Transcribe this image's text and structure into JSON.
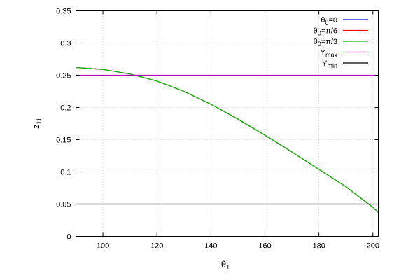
{
  "chart_data": {
    "type": "line",
    "xlabel": {
      "base": "θ",
      "sub": "1"
    },
    "ylabel": {
      "base": "z",
      "sub": "11"
    },
    "xlim": [
      90,
      202
    ],
    "ylim": [
      0,
      0.35
    ],
    "x_ticks": [
      100,
      120,
      140,
      160,
      180,
      200
    ],
    "x_tick_labels": [
      "100",
      "120",
      "140",
      "160",
      "180",
      "200"
    ],
    "y_ticks": [
      0,
      0.05,
      0.1,
      0.15,
      0.2,
      0.25,
      0.3,
      0.35
    ],
    "y_tick_labels": [
      "0",
      "0.05",
      "0.1",
      "0.15",
      "0.2",
      "0.25",
      "0.3",
      "0.35"
    ],
    "grid": true,
    "legend_position": "top-right",
    "series": [
      {
        "label": {
          "base": "θ",
          "sub": "0",
          "rest": "=0"
        },
        "color": "#0000ff",
        "x": [
          90,
          100,
          110,
          120,
          130,
          140,
          150,
          160,
          170,
          180,
          190,
          200,
          202
        ],
        "y": [
          0.262,
          0.259,
          0.252,
          0.241,
          0.225,
          0.205,
          0.182,
          0.157,
          0.131,
          0.104,
          0.077,
          0.045,
          0.037
        ]
      },
      {
        "label": {
          "base": "θ",
          "sub": "0",
          "rest": "=π/6"
        },
        "color": "#ff0000",
        "x": [
          90,
          100,
          110,
          120,
          130,
          140,
          150,
          160,
          170,
          180,
          190,
          200,
          202
        ],
        "y": [
          0.262,
          0.259,
          0.252,
          0.241,
          0.225,
          0.205,
          0.182,
          0.157,
          0.131,
          0.104,
          0.077,
          0.045,
          0.037
        ]
      },
      {
        "label": {
          "base": "θ",
          "sub": "0",
          "rest": "=π/3"
        },
        "color": "#00c000",
        "x": [
          90,
          100,
          110,
          120,
          130,
          140,
          150,
          160,
          170,
          180,
          190,
          200,
          202
        ],
        "y": [
          0.262,
          0.259,
          0.252,
          0.241,
          0.225,
          0.205,
          0.182,
          0.157,
          0.131,
          0.104,
          0.077,
          0.045,
          0.037
        ]
      },
      {
        "label": {
          "base": "Y",
          "sub": "max",
          "rest": ""
        },
        "color": "#c000c0",
        "x": [
          90,
          202
        ],
        "y": [
          0.25,
          0.25
        ]
      },
      {
        "label": {
          "base": "Y",
          "sub": "min",
          "rest": ""
        },
        "color": "#000000",
        "x": [
          90,
          202
        ],
        "y": [
          0.05,
          0.05
        ]
      }
    ]
  }
}
